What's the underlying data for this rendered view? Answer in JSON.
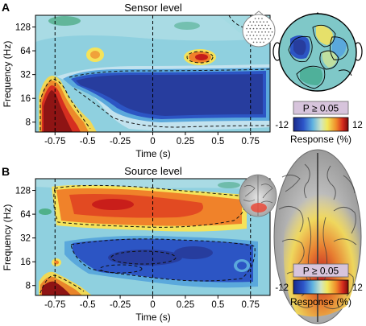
{
  "chart_data": [
    {
      "panel": "A",
      "type": "heatmap",
      "title": "Sensor level",
      "xlabel": "Time (s)",
      "ylabel": "Frequency (Hz)",
      "x_ticks": [
        "-0.75",
        "-0.5",
        "-0.25",
        "0",
        "0.25",
        "0.5",
        "0.75"
      ],
      "x_tick_values": [
        -0.75,
        -0.5,
        -0.25,
        0,
        0.25,
        0.5,
        0.75
      ],
      "y_ticks": [
        "128",
        "64",
        "32",
        "16",
        "8"
      ],
      "y_tick_values": [
        128,
        64,
        32,
        16,
        8
      ],
      "y_scale": "log",
      "xlim": [
        -0.9,
        0.9
      ],
      "ylim": [
        6,
        180
      ],
      "vlines": [
        -0.75,
        0,
        0.75
      ],
      "colorbar": {
        "min": -12,
        "max": 12,
        "min_label": "-12",
        "max_label": "12",
        "label": "Response (%)",
        "mask_label": "P ≥ 0.05"
      }
    },
    {
      "panel": "B",
      "type": "heatmap",
      "title": "Source level",
      "xlabel": "Time (s)",
      "ylabel": "Frequency (Hz)",
      "x_ticks": [
        "-0.75",
        "-0.5",
        "-0.25",
        "0",
        "0.25",
        "0.5",
        "0.75"
      ],
      "x_tick_values": [
        -0.75,
        -0.5,
        -0.25,
        0,
        0.25,
        0.5,
        0.75
      ],
      "y_ticks": [
        "128",
        "64",
        "32",
        "16",
        "8"
      ],
      "y_tick_values": [
        128,
        64,
        32,
        16,
        8
      ],
      "y_scale": "log",
      "xlim": [
        -0.9,
        0.9
      ],
      "ylim": [
        6,
        180
      ],
      "vlines": [
        -0.75,
        0,
        0.75
      ],
      "colorbar": {
        "min": -12,
        "max": 12,
        "min_label": "-12",
        "max_label": "12",
        "label": "Response (%)",
        "mask_label": "P ≥ 0.05"
      }
    }
  ],
  "colors": {
    "deep_blue": "#2b3a9c",
    "cyan": "#79c6d6",
    "yellow": "#f5e35a",
    "orange": "#f0822a",
    "dark_red": "#8e1414",
    "green": "#4fb08a"
  }
}
